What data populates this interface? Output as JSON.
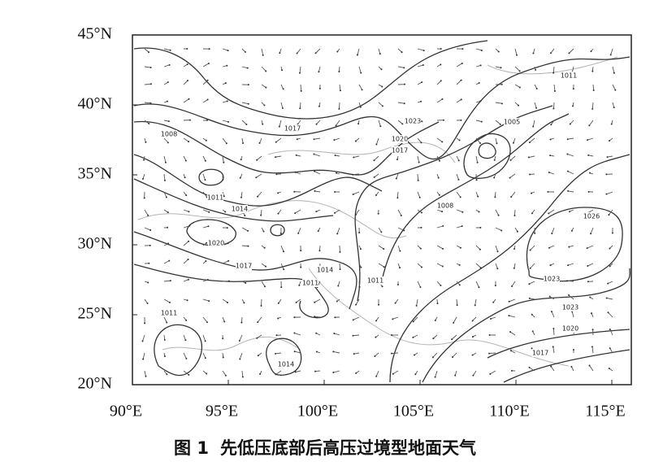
{
  "map": {
    "xlim": [
      90,
      115
    ],
    "ylim": [
      20,
      45
    ],
    "xticks": [
      {
        "value": 90,
        "label": "90°E"
      },
      {
        "value": 95,
        "label": "95°E"
      },
      {
        "value": 100,
        "label": "100°E"
      },
      {
        "value": 105,
        "label": "105°E"
      },
      {
        "value": 110,
        "label": "110°E"
      },
      {
        "value": 115,
        "label": "115°E"
      }
    ],
    "yticks": [
      {
        "value": 20,
        "label": "20°N"
      },
      {
        "value": 25,
        "label": "25°N"
      },
      {
        "value": 30,
        "label": "30°N"
      },
      {
        "value": 35,
        "label": "35°N"
      },
      {
        "value": 40,
        "label": "40°N"
      },
      {
        "value": 45,
        "label": "45°N"
      }
    ],
    "contour_labels": [
      "1011",
      "1017",
      "1023",
      "1020",
      "1017",
      "1008",
      "1005",
      "1011",
      "1014",
      "1008",
      "1026",
      "1020",
      "1017",
      "1014",
      "1011",
      "1011",
      "1023",
      "1023",
      "1020",
      "1017",
      "1011",
      "1014"
    ]
  },
  "caption": {
    "label": "图 1",
    "text": "先低压底部后高压过境型地面天气"
  }
}
